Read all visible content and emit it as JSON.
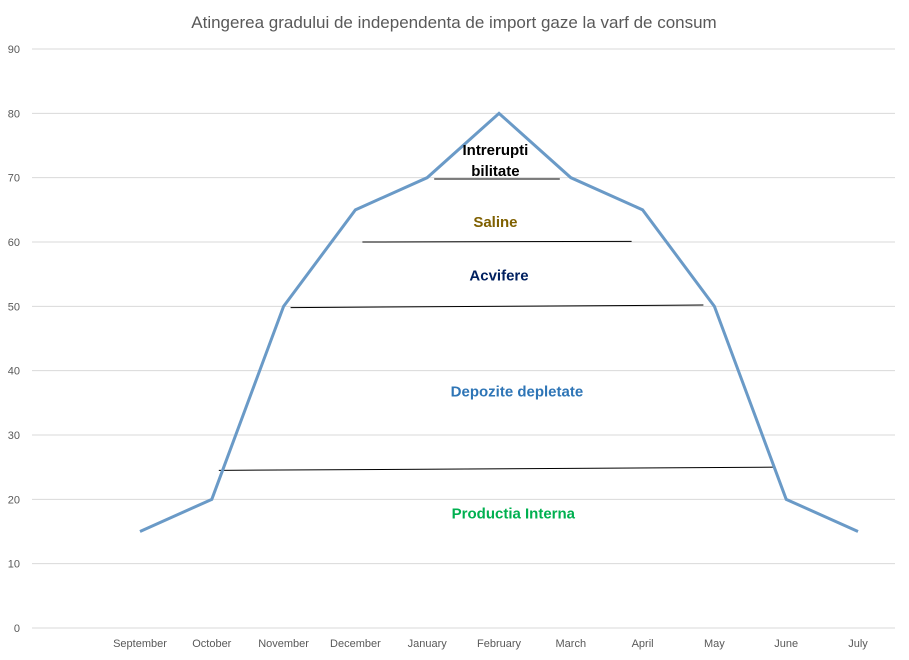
{
  "chart_data": {
    "type": "line",
    "title": "Atingerea gradului de independenta de import gaze la varf de consum",
    "xlabel": "",
    "ylabel": "",
    "categories": [
      "September",
      "October",
      "November",
      "December",
      "January",
      "February",
      "March",
      "April",
      "May",
      "June",
      "July"
    ],
    "series": [
      {
        "values": [
          15,
          20,
          50,
          65,
          70,
          80,
          70,
          65,
          50,
          20,
          15
        ],
        "color": "#6a9ac7"
      }
    ],
    "ylim": [
      0,
      90
    ],
    "yticks": [
      0,
      10,
      20,
      30,
      40,
      50,
      60,
      70,
      80,
      90
    ],
    "grid": true,
    "legend": "none",
    "boundaries": [
      {
        "from": "October",
        "to": "June",
        "y_start": 24.5,
        "y_end": 25
      },
      {
        "from": "November",
        "to": "May",
        "y_start": 49.8,
        "y_end": 50.2
      },
      {
        "from": "December",
        "to": "April",
        "y_start": 60,
        "y_end": 60.1
      },
      {
        "from": "January",
        "to": "March",
        "y_start": 69.8,
        "y_end": 69.8
      }
    ],
    "annotations": [
      {
        "lines": [
          "Productia Interna"
        ],
        "color": "#00b050",
        "x": 5.2,
        "y": 17
      },
      {
        "lines": [
          "Depozite depletate"
        ],
        "color": "#2e75b6",
        "x": 5.25,
        "y": 36
      },
      {
        "lines": [
          "Acvifere"
        ],
        "color": "#002060",
        "x": 5.0,
        "y": 54
      },
      {
        "lines": [
          "Saline"
        ],
        "color": "#7f6000",
        "x": 4.95,
        "y": 62.3
      },
      {
        "lines": [
          "Intrerupti",
          "bilitate"
        ],
        "color": "#000000",
        "x": 4.95,
        "y": 73.5
      }
    ]
  }
}
